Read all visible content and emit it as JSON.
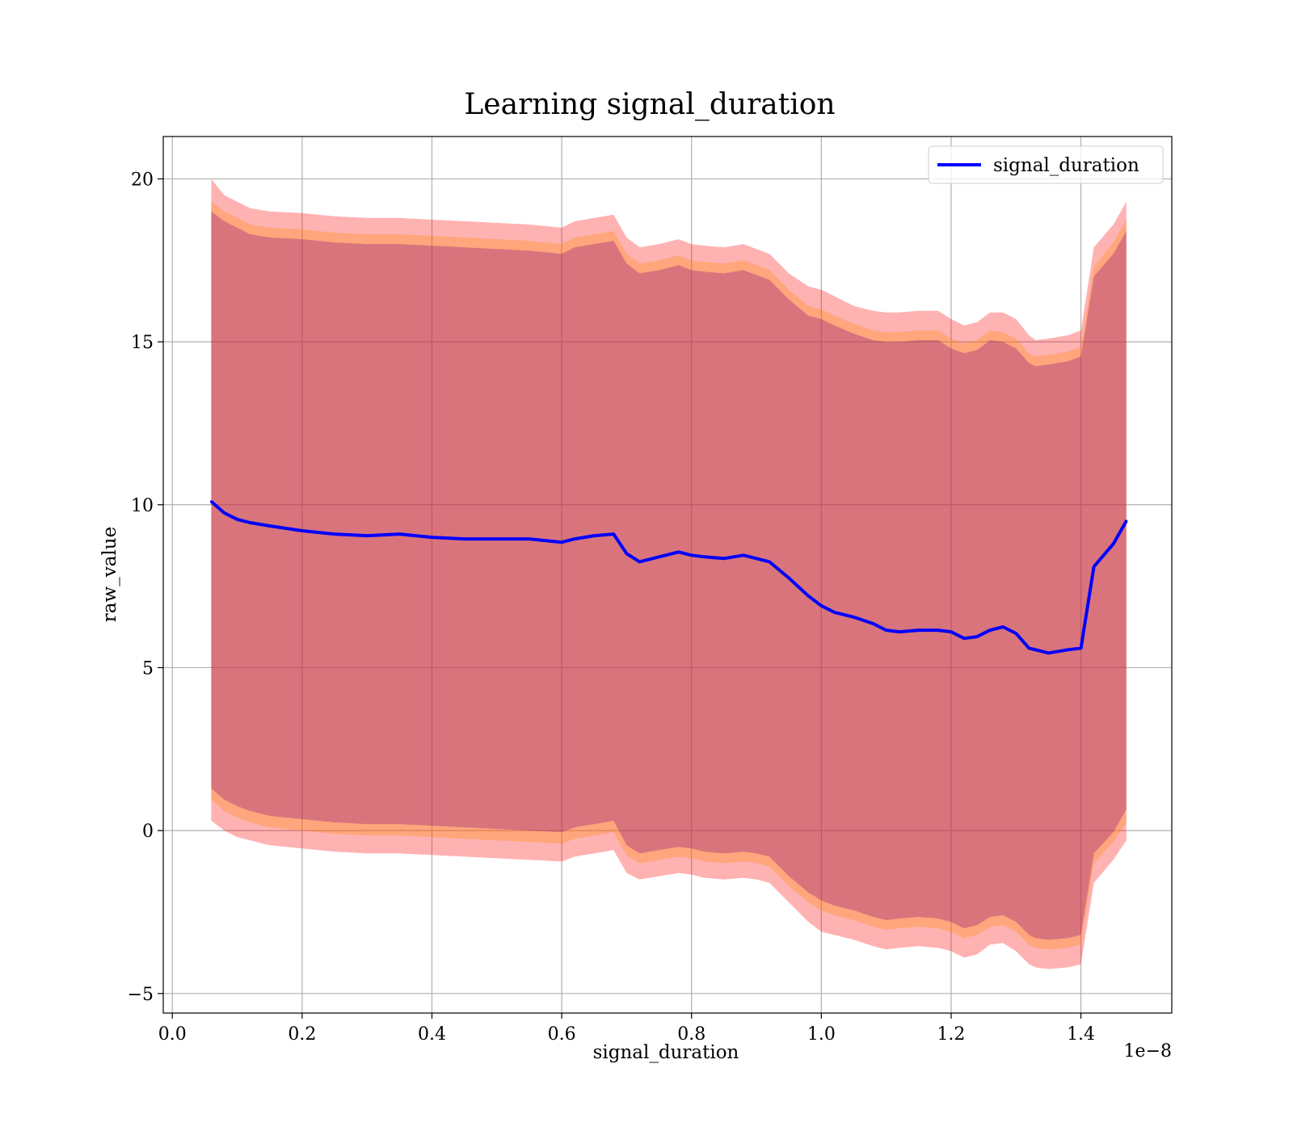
{
  "chart_data": {
    "type": "area",
    "title": "Learning signal_duration",
    "xlabel": "signal_duration",
    "ylabel": "raw_value",
    "x_offset_label": "1e−8",
    "xlim": [
      -0.014,
      1.54
    ],
    "ylim": [
      -5.6,
      21.3
    ],
    "x_ticks": [
      0.0,
      0.2,
      0.4,
      0.6,
      0.8,
      1.0,
      1.2,
      1.4
    ],
    "x_tick_labels": [
      "0.0",
      "0.2",
      "0.4",
      "0.6",
      "0.8",
      "1.0",
      "1.2",
      "1.4"
    ],
    "y_ticks": [
      -5,
      0,
      5,
      10,
      15,
      20
    ],
    "y_tick_labels": [
      "−5",
      "0",
      "5",
      "10",
      "15",
      "20"
    ],
    "grid": true,
    "legend": {
      "position": "top-right",
      "entries": [
        "signal_duration"
      ]
    },
    "x": [
      0.06,
      0.08,
      0.1,
      0.12,
      0.15,
      0.2,
      0.25,
      0.3,
      0.35,
      0.4,
      0.45,
      0.5,
      0.55,
      0.6,
      0.62,
      0.65,
      0.68,
      0.7,
      0.72,
      0.75,
      0.78,
      0.8,
      0.82,
      0.85,
      0.88,
      0.9,
      0.92,
      0.95,
      0.98,
      1.0,
      1.02,
      1.05,
      1.08,
      1.1,
      1.12,
      1.15,
      1.18,
      1.2,
      1.22,
      1.24,
      1.26,
      1.28,
      1.3,
      1.32,
      1.33,
      1.35,
      1.38,
      1.4,
      1.42,
      1.45,
      1.47
    ],
    "series": [
      {
        "name": "signal_duration",
        "color": "#0000ff",
        "values": [
          10.1,
          9.75,
          9.55,
          9.45,
          9.35,
          9.2,
          9.1,
          9.05,
          9.1,
          9.0,
          8.95,
          8.95,
          8.95,
          8.85,
          8.95,
          9.05,
          9.1,
          8.5,
          8.25,
          8.4,
          8.55,
          8.45,
          8.4,
          8.35,
          8.45,
          8.35,
          8.25,
          7.75,
          7.2,
          6.9,
          6.7,
          6.55,
          6.35,
          6.15,
          6.1,
          6.15,
          6.15,
          6.1,
          5.9,
          5.95,
          6.15,
          6.25,
          6.05,
          5.6,
          5.55,
          5.45,
          5.55,
          5.6,
          8.1,
          8.8,
          9.5
        ]
      }
    ],
    "bands": [
      {
        "color": "#ff0000",
        "opacity": 0.3,
        "upper": [
          20.0,
          19.5,
          19.3,
          19.1,
          19.0,
          18.95,
          18.85,
          18.8,
          18.8,
          18.75,
          18.7,
          18.65,
          18.6,
          18.5,
          18.7,
          18.8,
          18.9,
          18.2,
          17.9,
          18.0,
          18.15,
          18.0,
          17.95,
          17.9,
          18.0,
          17.85,
          17.7,
          17.1,
          16.7,
          16.6,
          16.4,
          16.1,
          15.95,
          15.9,
          15.9,
          15.95,
          15.95,
          15.7,
          15.5,
          15.6,
          15.9,
          15.9,
          15.7,
          15.2,
          15.05,
          15.1,
          15.2,
          15.35,
          17.9,
          18.6,
          19.3
        ],
        "lower": [
          0.3,
          0.0,
          -0.2,
          -0.3,
          -0.45,
          -0.55,
          -0.65,
          -0.7,
          -0.7,
          -0.75,
          -0.8,
          -0.85,
          -0.9,
          -0.95,
          -0.8,
          -0.7,
          -0.6,
          -1.3,
          -1.5,
          -1.4,
          -1.3,
          -1.35,
          -1.45,
          -1.5,
          -1.45,
          -1.5,
          -1.6,
          -2.2,
          -2.8,
          -3.1,
          -3.2,
          -3.35,
          -3.55,
          -3.65,
          -3.6,
          -3.55,
          -3.6,
          -3.7,
          -3.9,
          -3.8,
          -3.5,
          -3.45,
          -3.7,
          -4.1,
          -4.2,
          -4.25,
          -4.2,
          -4.1,
          -1.6,
          -0.9,
          -0.3
        ]
      },
      {
        "color": "#ff8c00",
        "opacity": 0.3,
        "upper": [
          19.3,
          19.0,
          18.8,
          18.6,
          18.5,
          18.45,
          18.35,
          18.3,
          18.3,
          18.25,
          18.2,
          18.15,
          18.1,
          18.0,
          18.2,
          18.3,
          18.4,
          17.7,
          17.4,
          17.5,
          17.65,
          17.5,
          17.45,
          17.4,
          17.5,
          17.35,
          17.2,
          16.6,
          16.1,
          16.0,
          15.8,
          15.55,
          15.35,
          15.3,
          15.3,
          15.35,
          15.35,
          15.1,
          14.95,
          15.05,
          15.35,
          15.3,
          15.1,
          14.65,
          14.55,
          14.6,
          14.7,
          14.85,
          17.3,
          18.05,
          18.75
        ],
        "lower": [
          0.95,
          0.6,
          0.4,
          0.25,
          0.1,
          0.0,
          -0.1,
          -0.15,
          -0.15,
          -0.2,
          -0.25,
          -0.3,
          -0.35,
          -0.4,
          -0.25,
          -0.15,
          -0.05,
          -0.75,
          -1.0,
          -0.9,
          -0.8,
          -0.85,
          -0.95,
          -1.0,
          -0.95,
          -1.0,
          -1.1,
          -1.7,
          -2.2,
          -2.45,
          -2.6,
          -2.75,
          -2.95,
          -3.05,
          -3.0,
          -2.95,
          -3.0,
          -3.1,
          -3.3,
          -3.2,
          -2.95,
          -2.9,
          -3.1,
          -3.5,
          -3.6,
          -3.65,
          -3.6,
          -3.5,
          -1.0,
          -0.35,
          0.25
        ]
      },
      {
        "color": "#800080",
        "opacity": 0.3,
        "upper": [
          19.0,
          18.7,
          18.5,
          18.3,
          18.2,
          18.15,
          18.05,
          18.0,
          18.0,
          17.95,
          17.9,
          17.85,
          17.8,
          17.7,
          17.9,
          18.0,
          18.1,
          17.4,
          17.1,
          17.2,
          17.35,
          17.2,
          17.15,
          17.1,
          17.2,
          17.05,
          16.9,
          16.3,
          15.8,
          15.7,
          15.5,
          15.25,
          15.05,
          15.0,
          15.0,
          15.05,
          15.05,
          14.8,
          14.65,
          14.75,
          15.05,
          15.0,
          14.8,
          14.35,
          14.25,
          14.3,
          14.4,
          14.55,
          17.0,
          17.7,
          18.4
        ],
        "lower": [
          1.3,
          0.95,
          0.75,
          0.6,
          0.45,
          0.35,
          0.25,
          0.2,
          0.2,
          0.15,
          0.1,
          0.05,
          0.0,
          -0.05,
          0.1,
          0.2,
          0.3,
          -0.45,
          -0.7,
          -0.6,
          -0.5,
          -0.55,
          -0.65,
          -0.7,
          -0.65,
          -0.7,
          -0.8,
          -1.4,
          -1.9,
          -2.15,
          -2.3,
          -2.45,
          -2.65,
          -2.75,
          -2.7,
          -2.65,
          -2.7,
          -2.8,
          -3.0,
          -2.9,
          -2.65,
          -2.6,
          -2.8,
          -3.2,
          -3.3,
          -3.35,
          -3.3,
          -3.2,
          -0.7,
          -0.05,
          0.65
        ]
      }
    ]
  }
}
